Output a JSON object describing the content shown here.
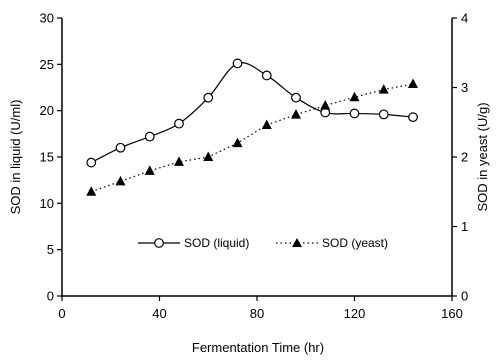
{
  "chart_data": {
    "type": "line",
    "title": "",
    "xlabel": "Fermentation Time (hr)",
    "ylabel_left": "SOD in liquid (U/ml)",
    "ylabel_right": "SOD in yeast (U/g)",
    "xlim": [
      0,
      160
    ],
    "ylim_left": [
      0,
      30
    ],
    "ylim_right": [
      0,
      4
    ],
    "x_ticks": [
      "0",
      "40",
      "80",
      "120",
      "160"
    ],
    "y_left_ticks": [
      "0",
      "5",
      "10",
      "15",
      "20",
      "25",
      "30"
    ],
    "y_right_ticks": [
      "0",
      "1",
      "2",
      "3",
      "4"
    ],
    "grid": false,
    "legend_position": "center-right",
    "series": [
      {
        "name": "SOD (liquid)",
        "axis": "left",
        "marker": "circle-open",
        "line_style": "solid",
        "color": "#000000",
        "x": [
          12,
          24,
          36,
          48,
          60,
          72,
          84,
          96,
          108,
          120,
          132,
          144
        ],
        "y": [
          14.4,
          16.0,
          17.2,
          18.6,
          21.4,
          25.1,
          23.8,
          21.4,
          19.8,
          19.7,
          19.6,
          19.3
        ]
      },
      {
        "name": "SOD (yeast)",
        "axis": "right",
        "marker": "triangle-filled",
        "line_style": "dotted",
        "color": "#000000",
        "x": [
          12,
          24,
          36,
          48,
          60,
          72,
          84,
          96,
          108,
          120,
          132,
          144
        ],
        "y": [
          1.5,
          1.65,
          1.8,
          1.93,
          2.0,
          2.2,
          2.46,
          2.61,
          2.74,
          2.86,
          2.97,
          3.05
        ]
      }
    ]
  }
}
